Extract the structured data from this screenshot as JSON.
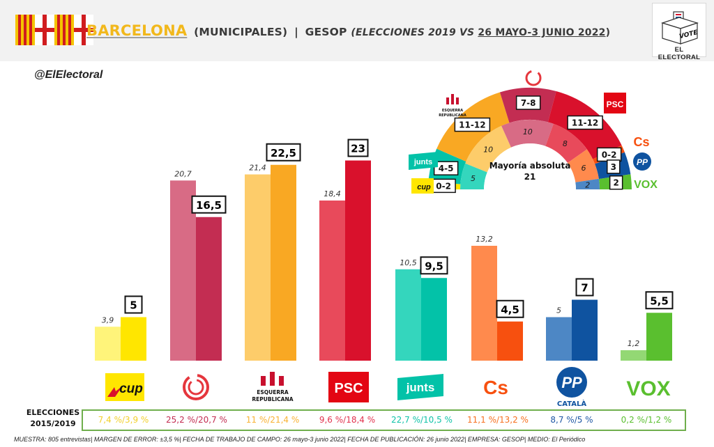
{
  "header": {
    "city": "BARCELONA",
    "type": "(MUNICIPALES)",
    "pollster": "GESOP",
    "subtitle_prefix": "(ELECCIONES 2019 VS ",
    "subtitle_dates": "26 MAYO-3 JUNIO 2022",
    "subtitle_suffix": ")",
    "brand_name": "EL ELECTORAL",
    "vote_text": "VOTE"
  },
  "handle": "@ElElectoral",
  "colors": {
    "cup": "#ffe600",
    "comuns": "#c32d52",
    "erc": "#f9a823",
    "psc": "#d9112c",
    "junts": "#03c2a8",
    "cs": "#f7500f",
    "pp": "#0f53a0",
    "vox": "#5abf2f"
  },
  "chart_data": {
    "type": "bar",
    "categories": [
      "CUP",
      "BComú",
      "ERC",
      "PSC",
      "Junts",
      "Cs",
      "PP",
      "Vox"
    ],
    "series": [
      {
        "name": "2019",
        "values": [
          3.9,
          20.7,
          21.4,
          18.4,
          10.5,
          13.2,
          5,
          1.2
        ]
      },
      {
        "name": "2022",
        "values": [
          5,
          16.5,
          22.5,
          23,
          9.5,
          4.5,
          7,
          5.5
        ]
      }
    ],
    "labels_2019": [
      "3,9",
      "20,7",
      "21,4",
      "18,4",
      "10,5",
      "13,2",
      "5",
      "1,2"
    ],
    "labels_2022": [
      "5",
      "16,5",
      "22,5",
      "23",
      "9,5",
      "4,5",
      "7",
      "5,5"
    ],
    "ylim": [
      0,
      25
    ],
    "grid": false,
    "seat_projection": {
      "title": "Mayoría absoluta",
      "majority": "21",
      "inner_seats": [
        {
          "party": "CUP",
          "value": 0,
          "label": ""
        },
        {
          "party": "Junts",
          "value": 5,
          "label": "5"
        },
        {
          "party": "ERC",
          "value": 10,
          "label": "10"
        },
        {
          "party": "BComú",
          "value": 10,
          "label": "10"
        },
        {
          "party": "PSC",
          "value": 8,
          "label": "8"
        },
        {
          "party": "Cs",
          "value": 6,
          "label": "6"
        },
        {
          "party": "PP",
          "value": 2,
          "label": "2"
        },
        {
          "party": "Vox",
          "value": 0,
          "label": ""
        }
      ],
      "outer_seats": [
        {
          "party": "CUP",
          "value": 1,
          "label": "0-2"
        },
        {
          "party": "Junts",
          "value": 4.5,
          "label": "4-5"
        },
        {
          "party": "ERC",
          "value": 11.5,
          "label": "11-12"
        },
        {
          "party": "BComú",
          "value": 7.5,
          "label": "7-8"
        },
        {
          "party": "PSC",
          "value": 11.5,
          "label": "11-12"
        },
        {
          "party": "Cs",
          "value": 1,
          "label": "0-2"
        },
        {
          "party": "PP",
          "value": 3,
          "label": "3"
        },
        {
          "party": "Vox",
          "value": 2,
          "label": "2"
        }
      ]
    }
  },
  "logos": {
    "cup": "cup",
    "erc_line1": "ESQUERRA",
    "erc_line2": "REPUBLICANA",
    "psc": "PSC",
    "junts": "junts",
    "cs": "Cs",
    "pp": "PP",
    "pp_sub": "CATALÀ",
    "vox": "VOX"
  },
  "table": {
    "title": "ELECCIONES 2015/2019",
    "results": [
      "7,4 %/3,9 %",
      "25,2 %/20,7 %",
      "11 %/21,4 %",
      "9,6 %/18,4 %",
      "22,7 %/10,5 %",
      "11,1 %/13,2 %",
      "8,7 %/5 %",
      "0,2 %/1,2 %"
    ],
    "result_colors": [
      "#f2d02c",
      "#c32d52",
      "#f9b233",
      "#e2334f",
      "#10c3a8",
      "#f7701f",
      "#1f57a4",
      "#5abf2f"
    ]
  },
  "footer": "MUESTRA: 805 entrevistas| MARGEN DE ERROR: ±3,5 %| FECHA DE TRABAJO DE CAMPO: 26 mayo-3 junio 2022| FECHA DE PUBLICACIÓN: 26 junio 2022| EMPRESA: GESOP| MEDIO: El Periódico"
}
